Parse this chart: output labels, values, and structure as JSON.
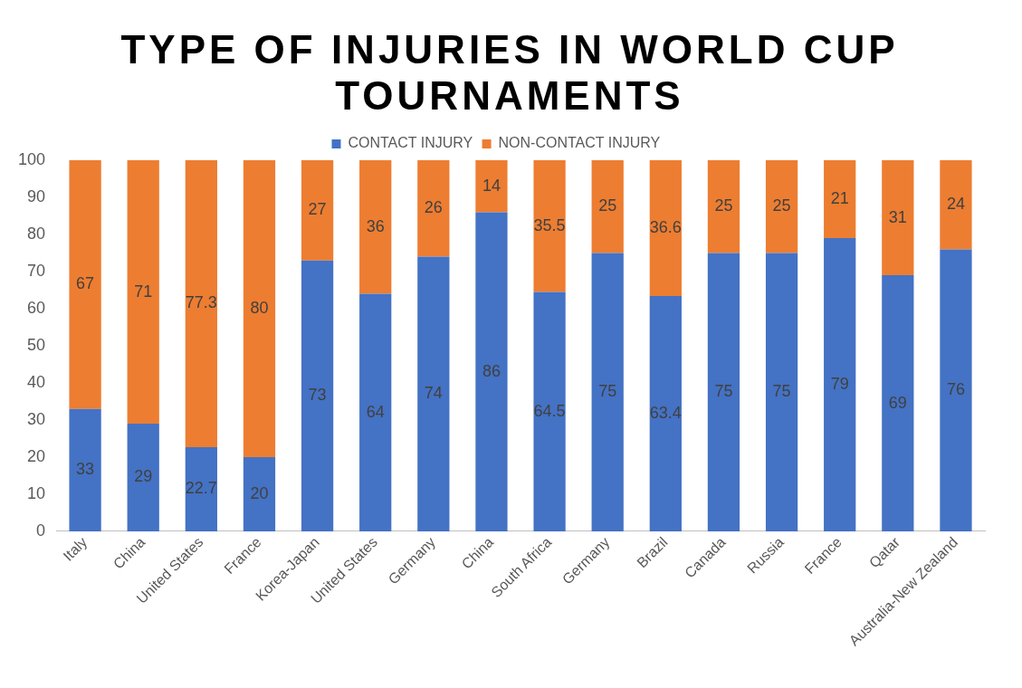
{
  "chart_data": {
    "type": "bar",
    "title": "TYPE OF INJURIES IN WORLD CUP TOURNAMENTS",
    "stacked": true,
    "categories": [
      "Italy",
      "China",
      "United States",
      "France",
      "Korea-Japan",
      "United States",
      "Germany",
      "China",
      "South Africa",
      "Germany",
      "Brazil",
      "Canada",
      "Russia",
      "France",
      "Qatar",
      "Australia-New Zealand"
    ],
    "series": [
      {
        "name": "CONTACT INJURY",
        "color": "#4472c4",
        "values": [
          33,
          29,
          22.7,
          20,
          73,
          64,
          74,
          86,
          64.5,
          75,
          63.4,
          75,
          75,
          79,
          69,
          76
        ]
      },
      {
        "name": "NON-CONTACT INJURY",
        "color": "#ed7d31",
        "values": [
          67,
          71,
          77.3,
          80,
          27,
          36,
          26,
          14,
          35.5,
          25,
          36.6,
          25,
          25,
          21,
          31,
          24
        ]
      }
    ],
    "ylim": [
      0,
      100
    ],
    "yticks": [
      0,
      10,
      20,
      30,
      40,
      50,
      60,
      70,
      80,
      90,
      100
    ],
    "grid": false,
    "legend": "top",
    "data_labels": true
  }
}
